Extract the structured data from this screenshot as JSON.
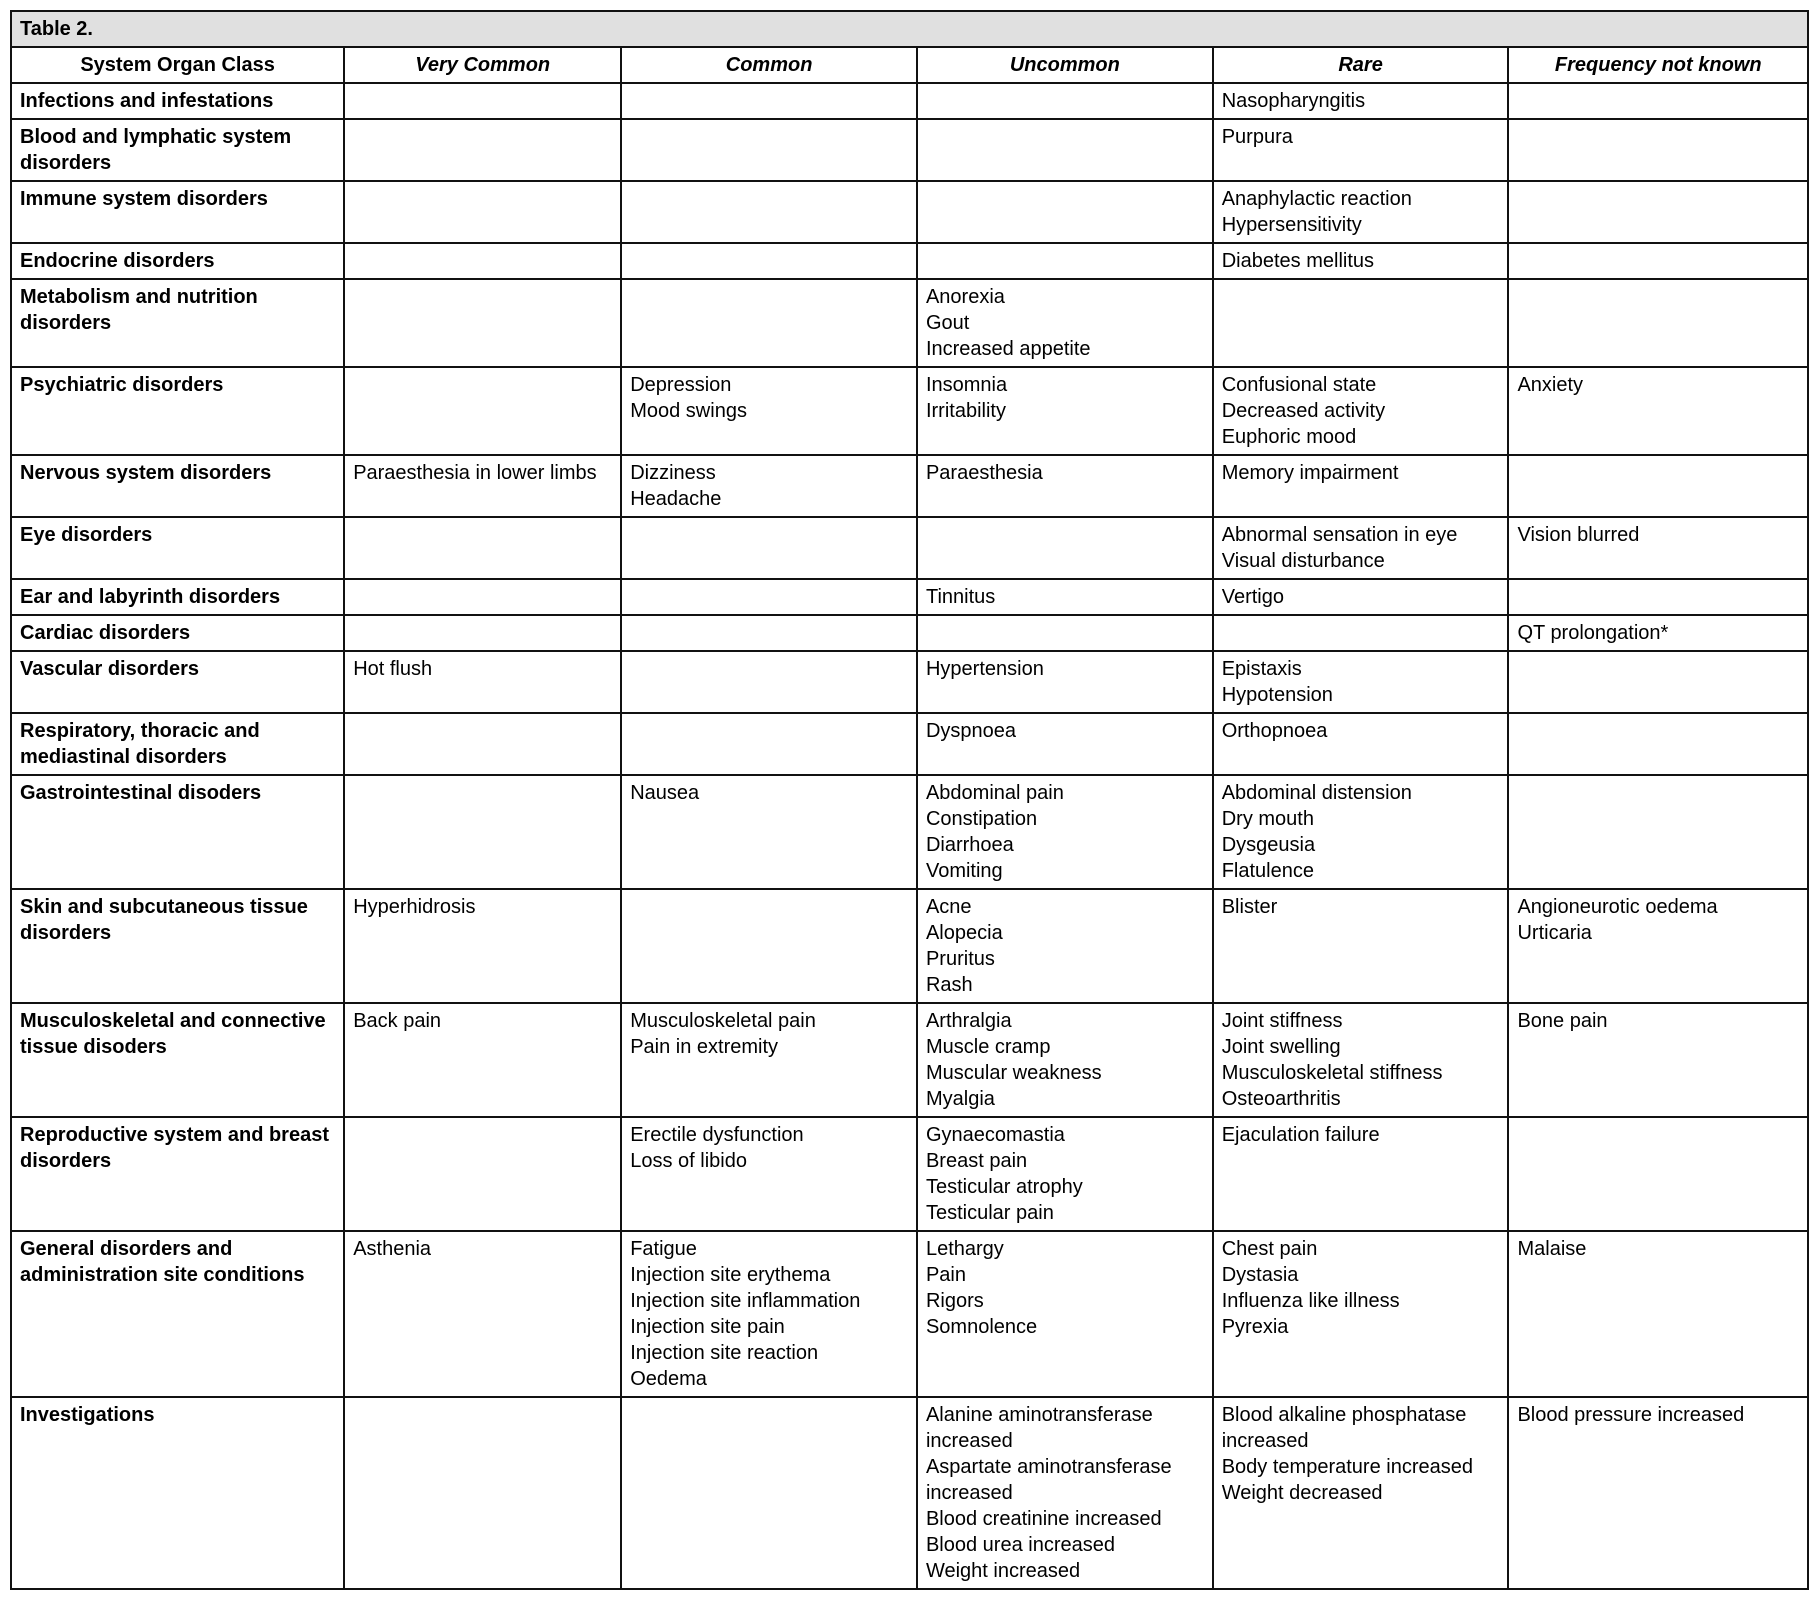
{
  "table_title": "Table 2.",
  "columns": [
    "System Organ Class",
    "Very Common",
    "Common",
    "Uncommon",
    "Rare",
    "Frequency not known"
  ],
  "rows": [
    {
      "soc": "Infections and infestations",
      "very_common": [],
      "common": [],
      "uncommon": [],
      "rare": [
        "Nasopharyngitis"
      ],
      "unknown": []
    },
    {
      "soc": "Blood and lymphatic system disorders",
      "very_common": [],
      "common": [],
      "uncommon": [],
      "rare": [
        "Purpura"
      ],
      "unknown": []
    },
    {
      "soc": "Immune system disorders",
      "very_common": [],
      "common": [],
      "uncommon": [],
      "rare": [
        "Anaphylactic reaction",
        "Hypersensitivity"
      ],
      "unknown": []
    },
    {
      "soc": "Endocrine disorders",
      "very_common": [],
      "common": [],
      "uncommon": [],
      "rare": [
        "Diabetes mellitus"
      ],
      "unknown": []
    },
    {
      "soc": "Metabolism and nutrition disorders",
      "very_common": [],
      "common": [],
      "uncommon": [
        "Anorexia",
        "Gout",
        "Increased appetite"
      ],
      "rare": [],
      "unknown": []
    },
    {
      "soc": "Psychiatric disorders",
      "very_common": [],
      "common": [
        "Depression",
        "Mood swings"
      ],
      "uncommon": [
        "Insomnia",
        "Irritability"
      ],
      "rare": [
        "Confusional state",
        "Decreased activity",
        "Euphoric mood"
      ],
      "unknown": [
        "Anxiety"
      ]
    },
    {
      "soc": "Nervous system disorders",
      "very_common": [
        "Paraesthesia in lower limbs"
      ],
      "common": [
        "Dizziness",
        "Headache"
      ],
      "uncommon": [
        "Paraesthesia"
      ],
      "rare": [
        "Memory impairment"
      ],
      "unknown": []
    },
    {
      "soc": "Eye disorders",
      "very_common": [],
      "common": [],
      "uncommon": [],
      "rare": [
        "Abnormal sensation in eye",
        "Visual disturbance"
      ],
      "unknown": [
        "Vision blurred"
      ]
    },
    {
      "soc": "Ear and labyrinth disorders",
      "very_common": [],
      "common": [],
      "uncommon": [
        "Tinnitus"
      ],
      "rare": [
        "Vertigo"
      ],
      "unknown": []
    },
    {
      "soc": "Cardiac disorders",
      "very_common": [],
      "common": [],
      "uncommon": [],
      "rare": [],
      "unknown": [
        "QT prolongation*"
      ]
    },
    {
      "soc": "Vascular disorders",
      "very_common": [
        "Hot flush"
      ],
      "common": [],
      "uncommon": [
        "Hypertension"
      ],
      "rare": [
        "Epistaxis",
        "Hypotension"
      ],
      "unknown": []
    },
    {
      "soc": "Respiratory, thoracic and mediastinal disorders",
      "very_common": [],
      "common": [],
      "uncommon": [
        "Dyspnoea"
      ],
      "rare": [
        "Orthopnoea"
      ],
      "unknown": []
    },
    {
      "soc": "Gastrointestinal disoders",
      "very_common": [],
      "common": [
        "Nausea"
      ],
      "uncommon": [
        "Abdominal pain",
        "Constipation",
        "Diarrhoea",
        "Vomiting"
      ],
      "rare": [
        "Abdominal distension",
        "Dry mouth",
        "Dysgeusia",
        "Flatulence"
      ],
      "unknown": []
    },
    {
      "soc": "Skin and subcutaneous tissue disorders",
      "very_common": [
        "Hyperhidrosis"
      ],
      "common": [],
      "uncommon": [
        "Acne",
        "Alopecia",
        "Pruritus",
        "Rash"
      ],
      "rare": [
        "Blister"
      ],
      "unknown": [
        "Angioneurotic oedema",
        "Urticaria"
      ]
    },
    {
      "soc": "Musculoskeletal and connective tissue disoders",
      "very_common": [
        "Back pain"
      ],
      "common": [
        "Musculoskeletal pain",
        "Pain in extremity"
      ],
      "uncommon": [
        "Arthralgia",
        "Muscle cramp",
        "Muscular weakness",
        "Myalgia"
      ],
      "rare": [
        "Joint stiffness",
        "Joint swelling",
        "Musculoskeletal stiffness",
        "Osteoarthritis"
      ],
      "unknown": [
        "Bone pain"
      ]
    },
    {
      "soc": "Reproductive system and breast disorders",
      "very_common": [],
      "common": [
        "Erectile dysfunction",
        "Loss of libido"
      ],
      "uncommon": [
        "Gynaecomastia",
        "Breast pain",
        "Testicular atrophy",
        "Testicular pain"
      ],
      "rare": [
        "Ejaculation failure"
      ],
      "unknown": []
    },
    {
      "soc": "General disorders and administration site conditions",
      "very_common": [
        "Asthenia"
      ],
      "common": [
        "Fatigue",
        "Injection site erythema",
        "Injection site inflammation",
        "Injection site pain",
        "Injection site reaction",
        "Oedema"
      ],
      "uncommon": [
        "Lethargy",
        "Pain",
        "Rigors",
        "Somnolence"
      ],
      "rare": [
        "Chest pain",
        "Dystasia",
        "Influenza like illness",
        "Pyrexia"
      ],
      "unknown": [
        "Malaise"
      ]
    },
    {
      "soc": "Investigations",
      "very_common": [],
      "common": [],
      "uncommon": [
        "Alanine aminotransferase increased",
        "Aspartate aminotransferase increased",
        "Blood creatinine increased",
        "Blood urea increased",
        "Weight increased"
      ],
      "rare": [
        "Blood alkaline phosphatase increased",
        "Body temperature increased",
        "Weight decreased"
      ],
      "unknown": [
        "Blood pressure increased"
      ]
    }
  ]
}
